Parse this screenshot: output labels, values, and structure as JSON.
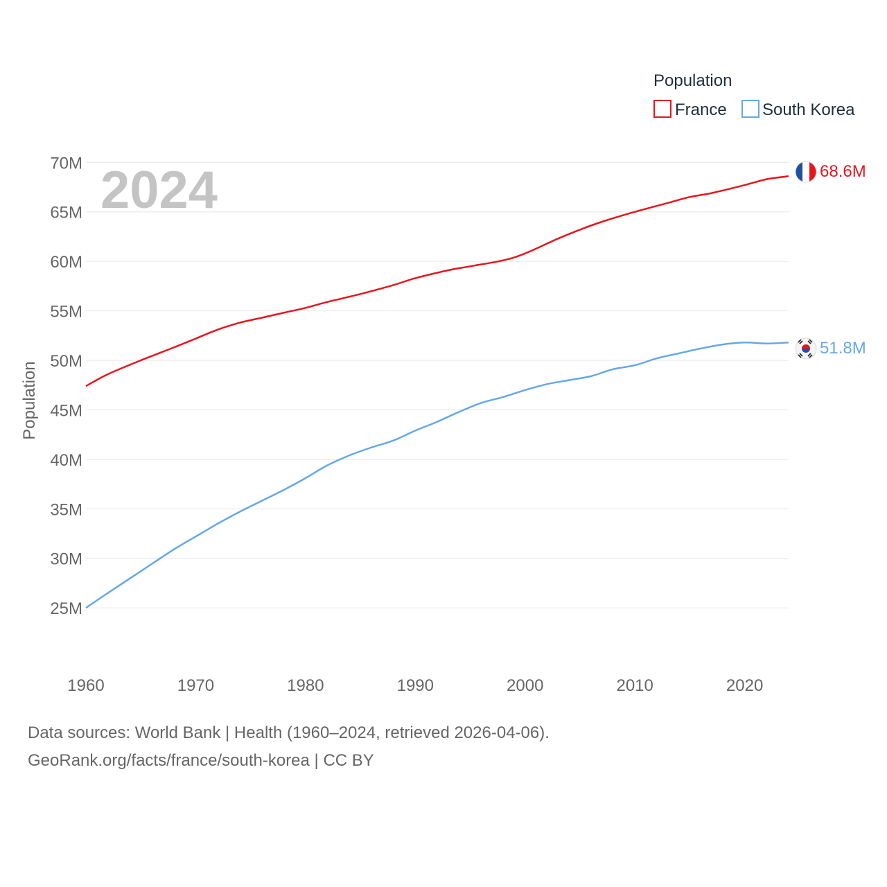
{
  "chart_data": {
    "type": "line",
    "current_year": "2024",
    "legend": {
      "title": "Population"
    },
    "yaxis": {
      "label": "Population",
      "ylim": [
        22000000,
        71000000
      ],
      "ticks": [
        25000000,
        30000000,
        35000000,
        40000000,
        45000000,
        50000000,
        55000000,
        60000000,
        65000000,
        70000000
      ],
      "tick_labels": [
        "25M",
        "30M",
        "35M",
        "40M",
        "45M",
        "50M",
        "55M",
        "60M",
        "65M",
        "70M"
      ],
      "grid": true
    },
    "xaxis": {
      "xlim": [
        1960,
        2024
      ],
      "ticks": [
        1960,
        1970,
        1980,
        1990,
        2000,
        2010,
        2020
      ],
      "tick_labels": [
        "1960",
        "1970",
        "1980",
        "1990",
        "2000",
        "2010",
        "2020"
      ]
    },
    "series": [
      {
        "name": "France",
        "color": "#e8141c",
        "end_label": "68.6M",
        "flag": "france-flag",
        "x": [
          1960,
          1962,
          1965,
          1968,
          1970,
          1972,
          1974,
          1976,
          1978,
          1980,
          1982,
          1985,
          1988,
          1990,
          1993,
          1995,
          1998,
          2000,
          2003,
          2005,
          2007,
          2010,
          2013,
          2015,
          2017,
          2020,
          2022,
          2024
        ],
        "values": [
          47400000,
          48600000,
          50000000,
          51300000,
          52200000,
          53100000,
          53800000,
          54300000,
          54800000,
          55300000,
          55900000,
          56700000,
          57600000,
          58300000,
          59100000,
          59500000,
          60100000,
          60800000,
          62300000,
          63200000,
          64000000,
          65000000,
          65900000,
          66500000,
          66900000,
          67700000,
          68300000,
          68600000
        ]
      },
      {
        "name": "South Korea",
        "color": "#64a8e6",
        "end_label": "51.8M",
        "flag": "south-korea-flag",
        "x": [
          1960,
          1962,
          1965,
          1968,
          1970,
          1972,
          1974,
          1976,
          1978,
          1980,
          1982,
          1984,
          1986,
          1988,
          1990,
          1992,
          1994,
          1996,
          1998,
          2000,
          2002,
          2004,
          2006,
          2008,
          2010,
          2012,
          2014,
          2016,
          2018,
          2020,
          2022,
          2024
        ],
        "values": [
          25000000,
          26500000,
          28700000,
          30900000,
          32200000,
          33500000,
          34700000,
          35800000,
          36900000,
          38100000,
          39400000,
          40400000,
          41200000,
          41900000,
          42900000,
          43800000,
          44800000,
          45700000,
          46300000,
          47000000,
          47600000,
          48000000,
          48400000,
          49100000,
          49500000,
          50200000,
          50700000,
          51200000,
          51600000,
          51800000,
          51700000,
          51800000
        ]
      }
    ]
  },
  "source": {
    "line1": "Data sources: World Bank | Health (1960–2024, retrieved 2026-04-06).",
    "line2": "GeoRank.org/facts/france/south-korea | CC BY"
  }
}
